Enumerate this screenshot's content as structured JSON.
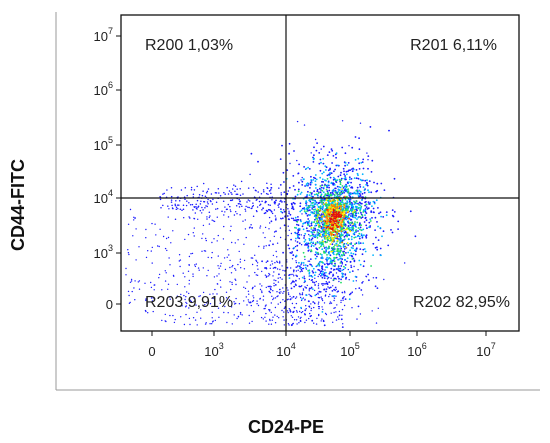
{
  "chart_data": {
    "type": "scatter",
    "subtype": "flow-cytometry-density-dot-plot",
    "xlabel": "CD24-PE",
    "ylabel": "CD44-FITC",
    "x_scale": "biexponential",
    "y_scale": "biexponential",
    "x_ticks": [
      {
        "base": "0",
        "exp": ""
      },
      {
        "base": "10",
        "exp": "3"
      },
      {
        "base": "10",
        "exp": "4"
      },
      {
        "base": "10",
        "exp": "5"
      },
      {
        "base": "10",
        "exp": "6"
      },
      {
        "base": "10",
        "exp": "7"
      }
    ],
    "y_ticks": [
      {
        "base": "0",
        "exp": ""
      },
      {
        "base": "10",
        "exp": "3"
      },
      {
        "base": "10",
        "exp": "4"
      },
      {
        "base": "10",
        "exp": "5"
      },
      {
        "base": "10",
        "exp": "6"
      },
      {
        "base": "10",
        "exp": "7"
      }
    ],
    "gates": [
      {
        "label": "R200 1,03%",
        "quadrant": "top-left"
      },
      {
        "label": "R201 6,11%",
        "quadrant": "top-right"
      },
      {
        "label": "R202 82,95%",
        "quadrant": "bottom-right"
      },
      {
        "label": "R203 9,91%",
        "quadrant": "bottom-left"
      }
    ],
    "gate_x_threshold": "10^4",
    "gate_y_threshold": "10^4",
    "population_center": {
      "x_log": 4.4,
      "y_log": 3.8
    },
    "density_colormap": [
      "#1a1aff",
      "#00b4ff",
      "#22dd66",
      "#ffee00",
      "#ff7a00",
      "#e01010"
    ],
    "grid": false,
    "legend": "none"
  }
}
